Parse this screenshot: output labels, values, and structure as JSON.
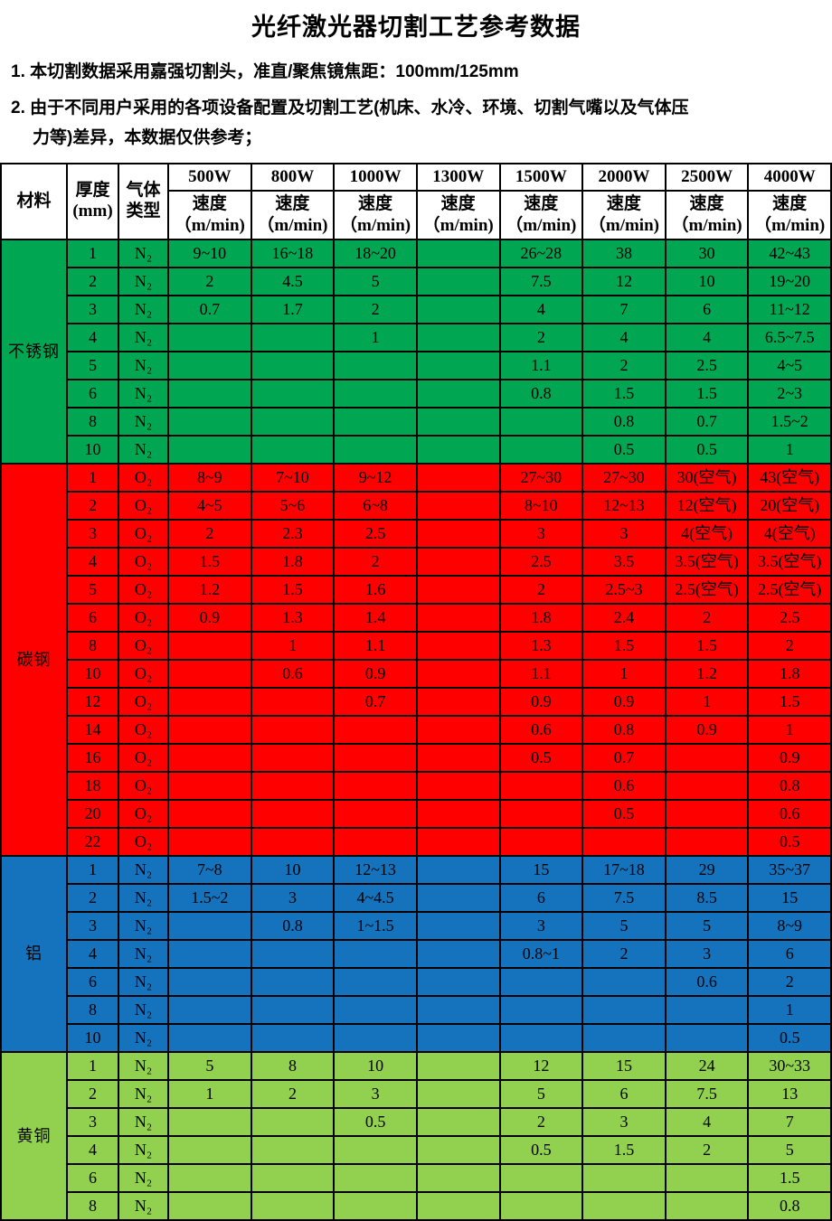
{
  "title": "光纤激光器切割工艺参考数据",
  "notes": {
    "note1": "1. 本切割数据采用嘉强切割头，准直/聚焦镜焦距：100mm/125mm",
    "note2_line1": "2. 由于不同用户采用的各项设备配置及切割工艺(机床、水冷、环境、切割气嘴以及气体压",
    "note2_line2": "力等)差异，本数据仅供参考；"
  },
  "table": {
    "headers": {
      "material": "材料",
      "thickness": "厚度\n(mm)",
      "gas": "气体\n类型"
    },
    "powers": [
      "500W",
      "800W",
      "1000W",
      "1300W",
      "1500W",
      "2000W",
      "2500W",
      "4000W"
    ],
    "speed_label": "速度",
    "speed_unit": "（m/min)",
    "sections": [
      {
        "material": "不锈钢",
        "color": "#00a651",
        "rows": [
          {
            "t": "1",
            "gas": "N₂",
            "v": [
              "9~10",
              "16~18",
              "18~20",
              "",
              "26~28",
              "38",
              "30",
              "42~43"
            ]
          },
          {
            "t": "2",
            "gas": "N₂",
            "v": [
              "2",
              "4.5",
              "5",
              "",
              "7.5",
              "12",
              "10",
              "19~20"
            ]
          },
          {
            "t": "3",
            "gas": "N₂",
            "v": [
              "0.7",
              "1.7",
              "2",
              "",
              "4",
              "7",
              "6",
              "11~12"
            ]
          },
          {
            "t": "4",
            "gas": "N₂",
            "v": [
              "",
              "",
              "1",
              "",
              "2",
              "4",
              "4",
              "6.5~7.5"
            ]
          },
          {
            "t": "5",
            "gas": "N₂",
            "v": [
              "",
              "",
              "",
              "",
              "1.1",
              "2",
              "2.5",
              "4~5"
            ]
          },
          {
            "t": "6",
            "gas": "N₂",
            "v": [
              "",
              "",
              "",
              "",
              "0.8",
              "1.5",
              "1.5",
              "2~3"
            ]
          },
          {
            "t": "8",
            "gas": "N₂",
            "v": [
              "",
              "",
              "",
              "",
              "",
              "0.8",
              "0.7",
              "1.5~2"
            ]
          },
          {
            "t": "10",
            "gas": "N₂",
            "v": [
              "",
              "",
              "",
              "",
              "",
              "0.5",
              "0.5",
              "1"
            ]
          }
        ]
      },
      {
        "material": "碳钢",
        "color": "#fe0000",
        "rows": [
          {
            "t": "1",
            "gas": "O₂",
            "v": [
              "8~9",
              "7~10",
              "9~12",
              "",
              "27~30",
              "27~30",
              "30(空气)",
              "43(空气)"
            ]
          },
          {
            "t": "2",
            "gas": "O₂",
            "v": [
              "4~5",
              "5~6",
              "6~8",
              "",
              "8~10",
              "12~13",
              "12(空气)",
              "20(空气)"
            ]
          },
          {
            "t": "3",
            "gas": "O₂",
            "v": [
              "2",
              "2.3",
              "2.5",
              "",
              "3",
              "3",
              "4(空气)",
              "4(空气)"
            ]
          },
          {
            "t": "4",
            "gas": "O₂",
            "v": [
              "1.5",
              "1.8",
              "2",
              "",
              "2.5",
              "3.5",
              "3.5(空气)",
              "3.5(空气)"
            ]
          },
          {
            "t": "5",
            "gas": "O₂",
            "v": [
              "1.2",
              "1.5",
              "1.6",
              "",
              "2",
              "2.5~3",
              "2.5(空气)",
              "2.5(空气)"
            ]
          },
          {
            "t": "6",
            "gas": "O₂",
            "v": [
              "0.9",
              "1.3",
              "1.4",
              "",
              "1.8",
              "2.4",
              "2",
              "2.5"
            ]
          },
          {
            "t": "8",
            "gas": "O₂",
            "v": [
              "",
              "1",
              "1.1",
              "",
              "1.3",
              "1.5",
              "1.5",
              "2"
            ]
          },
          {
            "t": "10",
            "gas": "O₂",
            "v": [
              "",
              "0.6",
              "0.9",
              "",
              "1.1",
              "1",
              "1.2",
              "1.8"
            ]
          },
          {
            "t": "12",
            "gas": "O₂",
            "v": [
              "",
              "",
              "0.7",
              "",
              "0.9",
              "0.9",
              "1",
              "1.5"
            ]
          },
          {
            "t": "14",
            "gas": "O₂",
            "v": [
              "",
              "",
              "",
              "",
              "0.6",
              "0.8",
              "0.9",
              "1"
            ]
          },
          {
            "t": "16",
            "gas": "O₂",
            "v": [
              "",
              "",
              "",
              "",
              "0.5",
              "0.7",
              "",
              "0.9"
            ]
          },
          {
            "t": "18",
            "gas": "O₂",
            "v": [
              "",
              "",
              "",
              "",
              "",
              "0.6",
              "",
              "0.8"
            ]
          },
          {
            "t": "20",
            "gas": "O₂",
            "v": [
              "",
              "",
              "",
              "",
              "",
              "0.5",
              "",
              "0.6"
            ]
          },
          {
            "t": "22",
            "gas": "O₂",
            "v": [
              "",
              "",
              "",
              "",
              "",
              "",
              "",
              "0.5"
            ]
          }
        ]
      },
      {
        "material": "铝",
        "color": "#1573bd",
        "rows": [
          {
            "t": "1",
            "gas": "N₂",
            "v": [
              "7~8",
              "10",
              "12~13",
              "",
              "15",
              "17~18",
              "29",
              "35~37"
            ]
          },
          {
            "t": "2",
            "gas": "N₂",
            "v": [
              "1.5~2",
              "3",
              "4~4.5",
              "",
              "6",
              "7.5",
              "8.5",
              "15"
            ]
          },
          {
            "t": "3",
            "gas": "N₂",
            "v": [
              "",
              "0.8",
              "1~1.5",
              "",
              "3",
              "5",
              "5",
              "8~9"
            ]
          },
          {
            "t": "4",
            "gas": "N₂",
            "v": [
              "",
              "",
              "",
              "",
              "0.8~1",
              "2",
              "3",
              "6"
            ]
          },
          {
            "t": "6",
            "gas": "N₂",
            "v": [
              "",
              "",
              "",
              "",
              "",
              "",
              "0.6",
              "2"
            ]
          },
          {
            "t": "8",
            "gas": "N₂",
            "v": [
              "",
              "",
              "",
              "",
              "",
              "",
              "",
              "1"
            ]
          },
          {
            "t": "10",
            "gas": "N₂",
            "v": [
              "",
              "",
              "",
              "",
              "",
              "",
              "",
              "0.5"
            ]
          }
        ]
      },
      {
        "material": "黄铜",
        "color": "#92d050",
        "rows": [
          {
            "t": "1",
            "gas": "N₂",
            "v": [
              "5",
              "8",
              "10",
              "",
              "12",
              "15",
              "24",
              "30~33"
            ]
          },
          {
            "t": "2",
            "gas": "N₂",
            "v": [
              "1",
              "2",
              "3",
              "",
              "5",
              "6",
              "7.5",
              "13"
            ]
          },
          {
            "t": "3",
            "gas": "N₂",
            "v": [
              "",
              "",
              "0.5",
              "",
              "2",
              "3",
              "4",
              "7"
            ]
          },
          {
            "t": "4",
            "gas": "N₂",
            "v": [
              "",
              "",
              "",
              "",
              "0.5",
              "1.5",
              "2",
              "5"
            ]
          },
          {
            "t": "6",
            "gas": "N₂",
            "v": [
              "",
              "",
              "",
              "",
              "",
              "",
              "",
              "1.5"
            ]
          },
          {
            "t": "8",
            "gas": "N₂",
            "v": [
              "",
              "",
              "",
              "",
              "",
              "",
              "",
              "0.8"
            ]
          }
        ]
      }
    ]
  }
}
